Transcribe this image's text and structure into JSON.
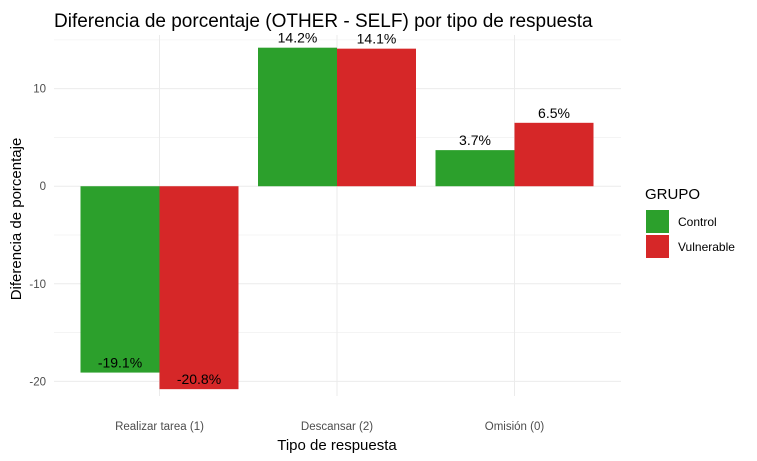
{
  "chart_data": {
    "type": "bar",
    "title": "Diferencia de porcentaje (OTHER - SELF) por tipo de respuesta",
    "xlabel": "Tipo de respuesta",
    "ylabel": "Diferencia de porcentaje",
    "categories": [
      "Realizar tarea (1)",
      "Descansar (2)",
      "Omisión (0)"
    ],
    "series": [
      {
        "name": "Control",
        "color": "#2ca02c",
        "values": [
          -19.1,
          14.2,
          3.7
        ],
        "labels": [
          "-19.1%",
          "14.2%",
          "3.7%"
        ]
      },
      {
        "name": "Vulnerable",
        "color": "#d62728",
        "values": [
          -20.8,
          14.1,
          6.5
        ],
        "labels": [
          "-20.8%",
          "14.1%",
          "6.5%"
        ]
      }
    ],
    "ylim": [
      -21.5,
      15.5
    ],
    "yticks": [
      -20,
      -10,
      0,
      10
    ],
    "yticklabels": [
      "-20",
      "-10",
      "0",
      "10"
    ],
    "grid": true,
    "legend": {
      "title": "GRUPO",
      "position": "right"
    }
  }
}
